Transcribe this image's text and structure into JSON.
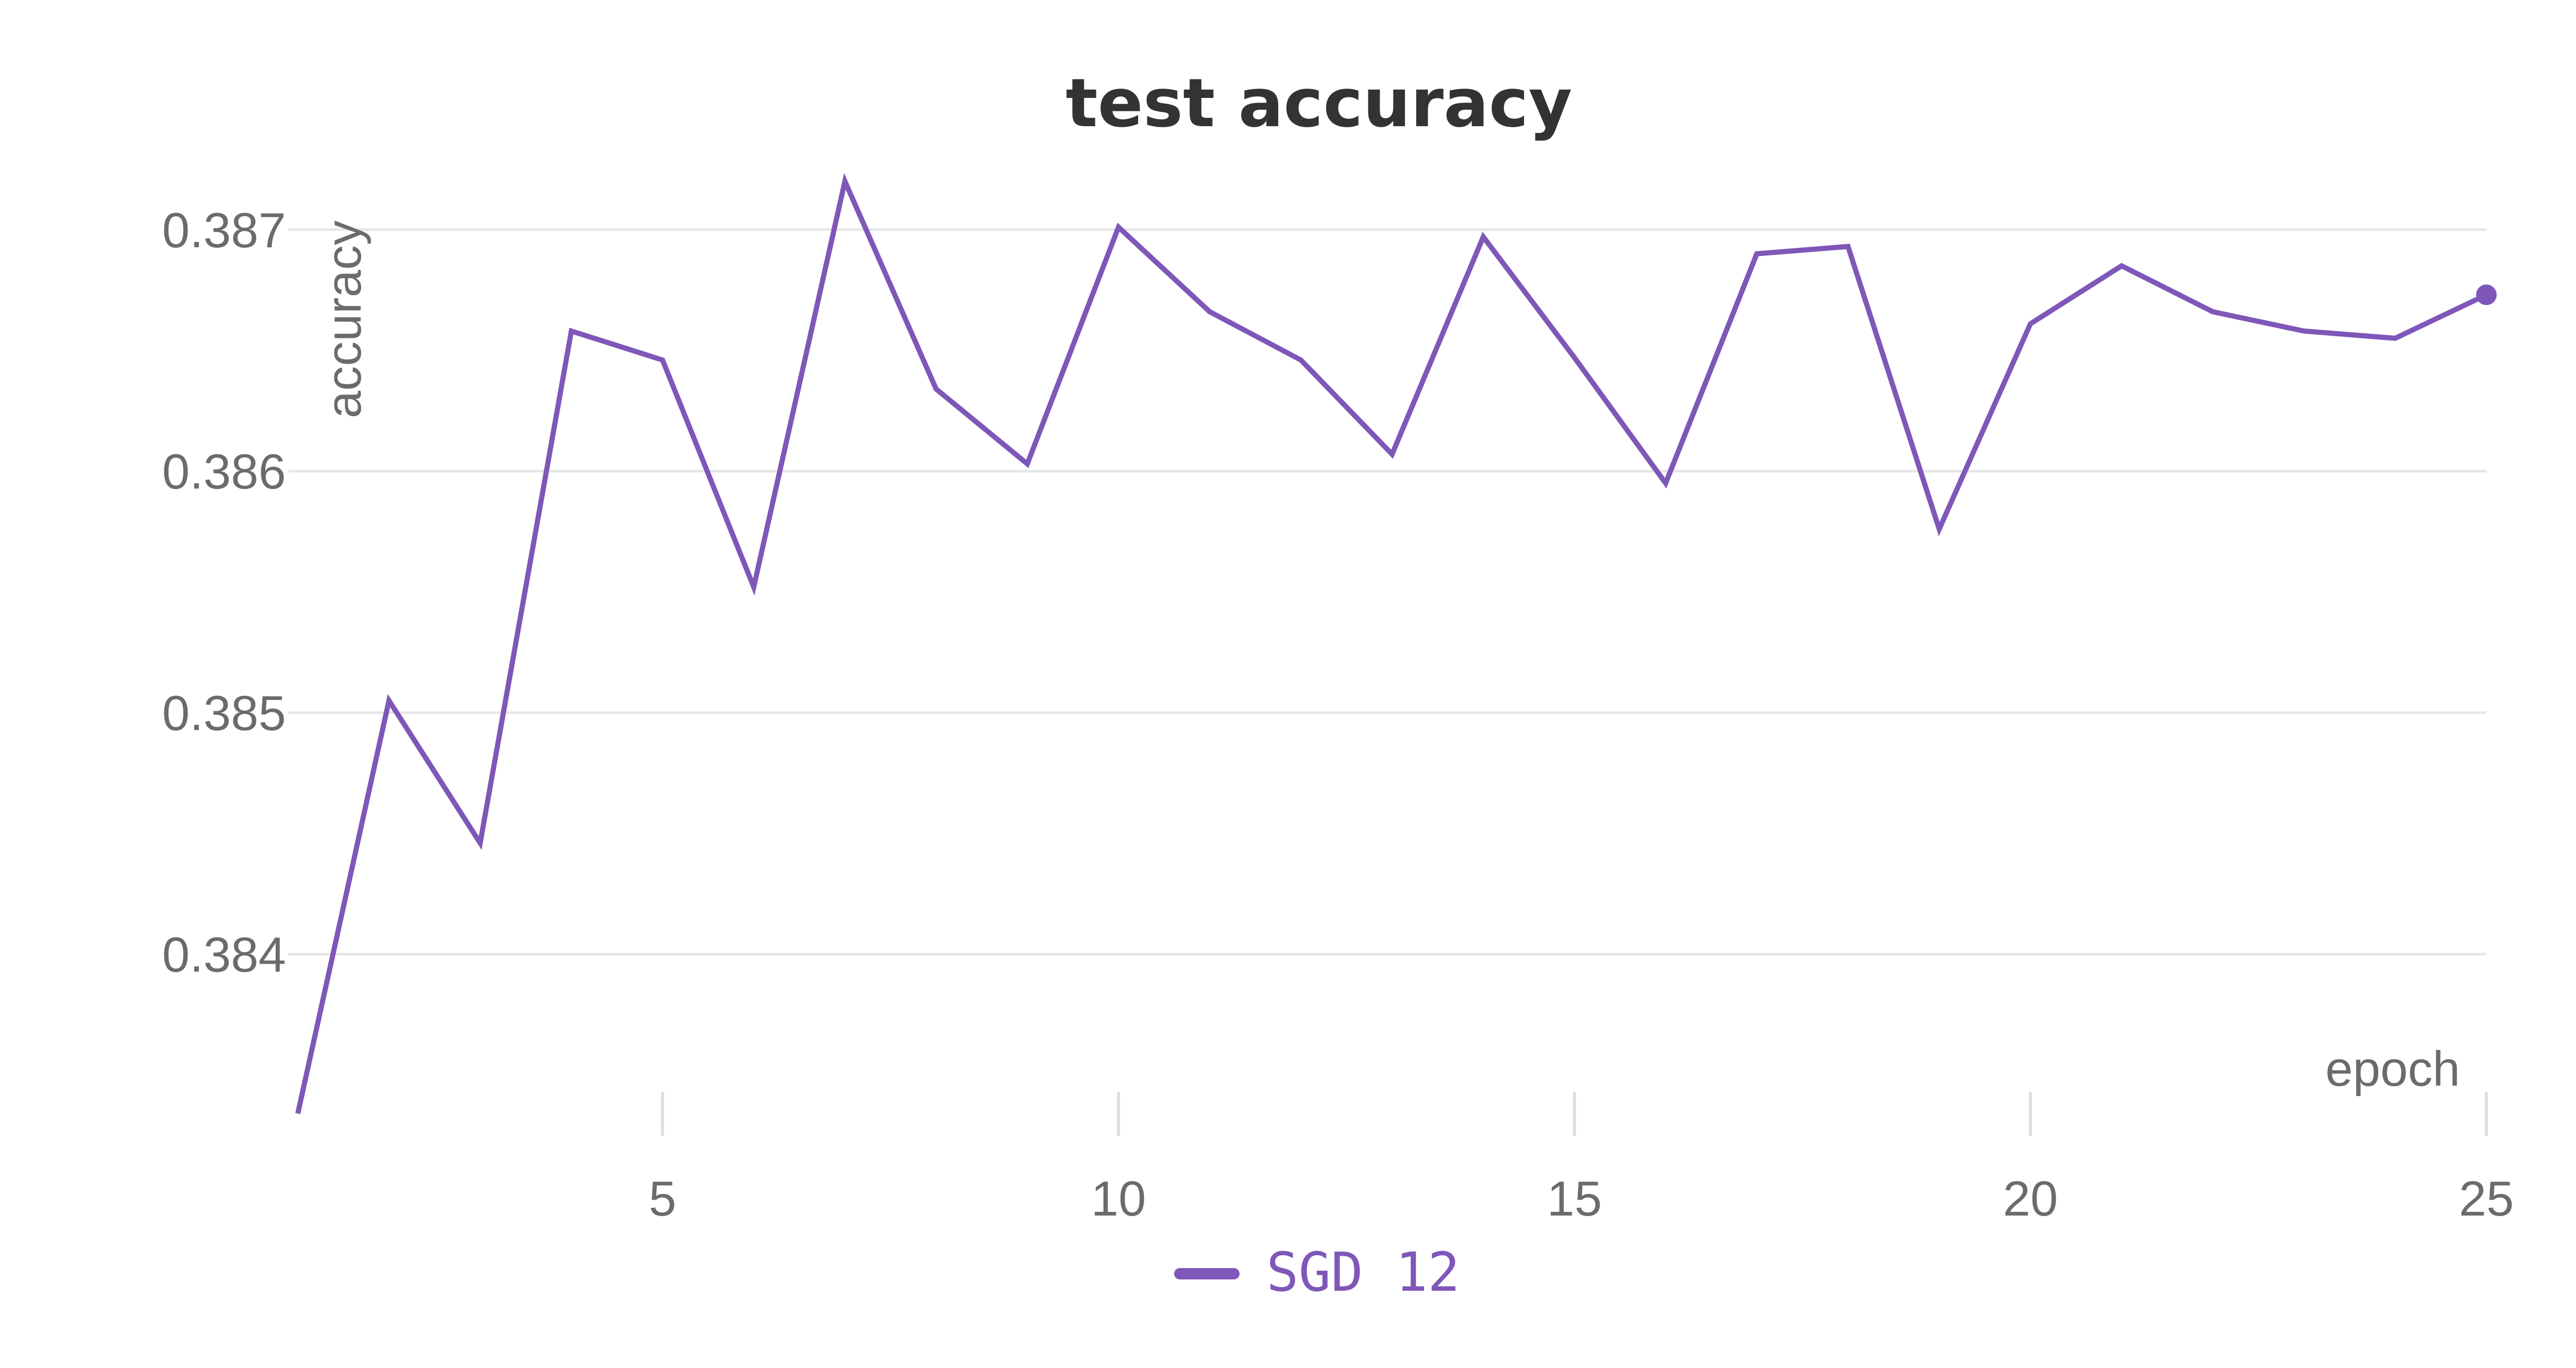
{
  "chart_data": {
    "type": "line",
    "title": "test accuracy",
    "xlabel": "epoch",
    "ylabel": "accuracy",
    "x": [
      1,
      2,
      3,
      4,
      5,
      6,
      7,
      8,
      9,
      10,
      11,
      12,
      13,
      14,
      15,
      16,
      17,
      18,
      19,
      20,
      21,
      22,
      23,
      24,
      25
    ],
    "series": [
      {
        "name": "SGD 12",
        "color": "#7e57b8",
        "values": [
          0.38334,
          0.38505,
          0.38446,
          0.38658,
          0.38646,
          0.38552,
          0.3872,
          0.38634,
          0.38603,
          0.38701,
          0.38666,
          0.38646,
          0.38607,
          0.38697,
          0.38647,
          0.38595,
          0.3869,
          0.38693,
          0.38576,
          0.38661,
          0.38685,
          0.38666,
          0.38658,
          0.38655,
          0.38673
        ]
      }
    ],
    "xlim": [
      1,
      25
    ],
    "ylim": [
      0.38334,
      0.3872
    ],
    "x_ticks": [
      "5",
      "10",
      "15",
      "20",
      "25"
    ],
    "y_ticks": [
      "0.384",
      "0.385",
      "0.386",
      "0.387"
    ],
    "grid": true,
    "legend_position": "bottom-center"
  }
}
